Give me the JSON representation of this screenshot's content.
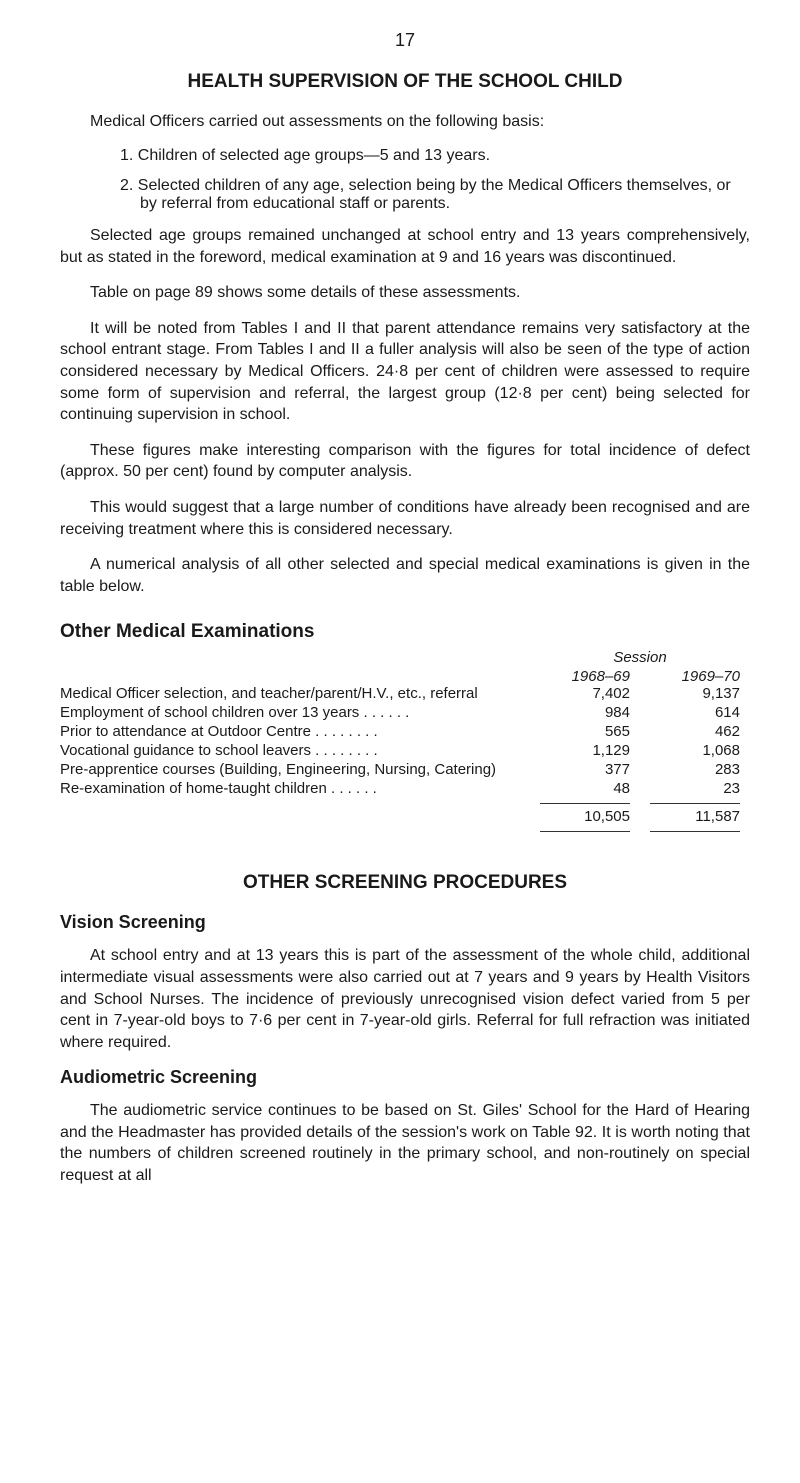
{
  "pageNumber": "17",
  "mainTitle": "HEALTH SUPERVISION OF THE SCHOOL CHILD",
  "intro": "Medical Officers carried out assessments on the following basis:",
  "items": {
    "one": "1.  Children of selected age groups—5 and 13 years.",
    "two": "2. Selected children of any age, selection being by the Medical Officers themselves, or by referral from educational staff or parents."
  },
  "para1": "Selected age groups remained unchanged at school entry and 13 years comprehensively, but as stated in the foreword, medical examination at 9 and 16 years was discontinued.",
  "para2": "Table on page 89 shows some details of these assessments.",
  "para3": "It will be noted from Tables I and II that parent attendance remains very satisfactory at the school entrant stage. From Tables I and II a fuller analysis will also be seen of the type of action considered necessary by Medical Officers. 24·8 per cent of children were assessed to require some form of supervision and referral, the largest group (12·8 per cent) being selected for continuing supervision in school.",
  "para4": "These figures make interesting comparison with the figures for total incidence of defect (approx. 50 per cent) found by computer analysis.",
  "para5": "This would suggest that a large number of conditions have already been recognised and are receiving treatment where this is considered necessary.",
  "para6": "A numerical analysis of all other selected and special medical examinations is given in the table below.",
  "tableTitle": "Other Medical Examinations",
  "sessionLabel": "Session",
  "years": {
    "a": "1968–69",
    "b": "1969–70"
  },
  "rows": {
    "r1": {
      "label": "Medical Officer selection, and teacher/parent/H.V., etc., referral",
      "a": "7,402",
      "b": "9,137"
    },
    "r2": {
      "label": "Employment of school children over 13 years  . .        . .        . .",
      "a": "984",
      "b": "614"
    },
    "r3": {
      "label": "Prior to attendance at Outdoor Centre  . .        . .        . .        . .",
      "a": "565",
      "b": "462"
    },
    "r4": {
      "label": "Vocational guidance to school leavers  . .        . .        . .        . .",
      "a": "1,129",
      "b": "1,068"
    },
    "r5": {
      "label": "Pre-apprentice courses (Building, Engineering, Nursing, Catering)",
      "a": "377",
      "b": "283"
    },
    "r6": {
      "label": "Re-examination of home-taught children            . .        . .        . .",
      "a": "48",
      "b": "23"
    }
  },
  "totals": {
    "a": "10,505",
    "b": "11,587"
  },
  "screeningTitle": "OTHER SCREENING PROCEDURES",
  "visionHeading": "Vision Screening",
  "visionPara": "At school entry and at 13 years this is part of the assessment of the whole child, additional intermediate visual assessments were also carried out at 7 years and 9 years by Health Visitors and School Nurses. The incidence of previously unrecognised vision defect varied from 5 per cent in 7-year-old boys to 7·6 per cent in 7-year-old girls. Referral for full refraction was initiated where required.",
  "audioHeading": "Audiometric Screening",
  "audioPara": "The audiometric service continues to be based on St. Giles' School for the Hard of Hearing and the Headmaster has provided details of the session's work on Table 92. It is worth noting that the numbers of children screened routinely in the primary school, and non-routinely on special request at all"
}
